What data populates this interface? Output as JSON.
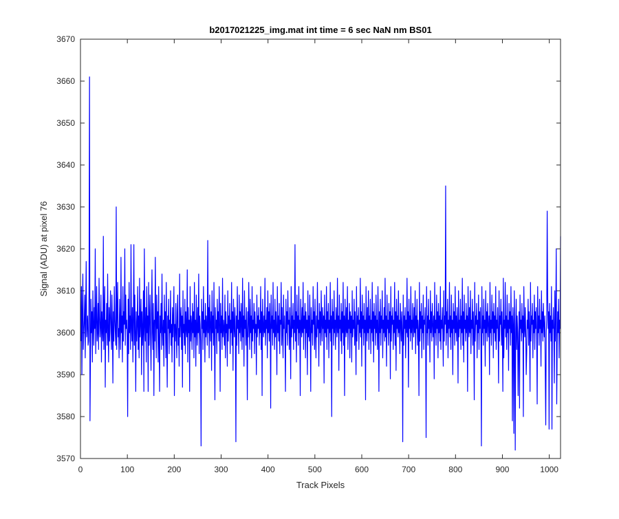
{
  "chart_data": {
    "type": "line",
    "title": "b2017021225_img.mat int time = 6 sec  NaN nm BS01",
    "xlabel": "Track Pixels",
    "ylabel": "Signal (ADU) at pixel 76",
    "xlim": [
      0,
      1024
    ],
    "ylim": [
      3570,
      3670
    ],
    "xticks": [
      0,
      100,
      200,
      300,
      400,
      500,
      600,
      700,
      800,
      900,
      1000
    ],
    "yticks": [
      3570,
      3580,
      3590,
      3600,
      3610,
      3620,
      3630,
      3640,
      3650,
      3660,
      3670
    ],
    "grid": false,
    "legend": "none",
    "series": [
      {
        "color": "#0000ff",
        "x_start": 1,
        "x_step": 1,
        "values_note_free": true,
        "values": [
          3598,
          3611,
          3590,
          3605,
          3614,
          3596,
          3600,
          3603,
          3609,
          3594,
          3606,
          3617,
          3599,
          3602,
          3604,
          3597,
          3598,
          3612,
          3661,
          3579,
          3594,
          3608,
          3600,
          3605,
          3593,
          3610,
          3602,
          3597,
          3606,
          3601,
          3620,
          3595,
          3603,
          3611,
          3598,
          3600,
          3607,
          3596,
          3613,
          3604,
          3599,
          3602,
          3609,
          3593,
          3605,
          3601,
          3598,
          3623,
          3596,
          3604,
          3611,
          3587,
          3603,
          3600,
          3607,
          3597,
          3614,
          3601,
          3593,
          3606,
          3598,
          3604,
          3610,
          3600,
          3596,
          3609,
          3602,
          3588,
          3605,
          3598,
          3611,
          3603,
          3600,
          3597,
          3630,
          3596,
          3605,
          3612,
          3599,
          3601,
          3594,
          3608,
          3602,
          3596,
          3618,
          3600,
          3604,
          3593,
          3611,
          3598,
          3605,
          3602,
          3620,
          3597,
          3609,
          3601,
          3603,
          3599,
          3580,
          3608,
          3595,
          3612,
          3600,
          3604,
          3596,
          3621,
          3601,
          3598,
          3606,
          3593,
          3603,
          3621,
          3597,
          3609,
          3600,
          3586,
          3605,
          3598,
          3602,
          3611,
          3596,
          3604,
          3594,
          3613,
          3599,
          3603,
          3608,
          3590,
          3605,
          3597,
          3601,
          3610,
          3586,
          3620,
          3602,
          3598,
          3606,
          3593,
          3611,
          3600,
          3604,
          3586,
          3612,
          3597,
          3603,
          3609,
          3599,
          3591,
          3605,
          3615,
          3600,
          3596,
          3607,
          3585,
          3603,
          3598,
          3618,
          3602,
          3594,
          3609,
          3601,
          3605,
          3593,
          3611,
          3598,
          3586,
          3604,
          3600,
          3607,
          3596,
          3614,
          3601,
          3597,
          3603,
          3592,
          3609,
          3600,
          3605,
          3594,
          3612,
          3598,
          3587,
          3604,
          3601,
          3608,
          3595,
          3603,
          3600,
          3610,
          3597,
          3602,
          3593,
          3606,
          3599,
          3604,
          3611,
          3585,
          3602,
          3598,
          3607,
          3600,
          3594,
          3605,
          3609,
          3597,
          3601,
          3592,
          3614,
          3599,
          3603,
          3606,
          3596,
          3604,
          3587,
          3610,
          3600,
          3602,
          3597,
          3608,
          3595,
          3605,
          3601,
          3599,
          3615,
          3593,
          3606,
          3600,
          3603,
          3586,
          3611,
          3598,
          3604,
          3602,
          3596,
          3607,
          3600,
          3605,
          3594,
          3612,
          3599,
          3603,
          3592,
          3609,
          3601,
          3597,
          3606,
          3600,
          3614,
          3595,
          3604,
          3602,
          3598,
          3573,
          3608,
          3601,
          3605,
          3596,
          3611,
          3600,
          3603,
          3593,
          3607,
          3599,
          3604,
          3601,
          3597,
          3622,
          3600,
          3606,
          3594,
          3609,
          3602,
          3598,
          3605,
          3591,
          3610,
          3600,
          3604,
          3597,
          3612,
          3599,
          3584,
          3606,
          3601,
          3603,
          3595,
          3608,
          3600,
          3605,
          3598,
          3611,
          3602,
          3586,
          3607,
          3600,
          3604,
          3596,
          3613,
          3599,
          3603,
          3601,
          3597,
          3609,
          3594,
          3605,
          3600,
          3602,
          3592,
          3610,
          3598,
          3604,
          3601,
          3607,
          3595,
          3603,
          3600,
          3612,
          3597,
          3605,
          3591,
          3608,
          3602,
          3599,
          3606,
          3600,
          3574,
          3604,
          3597,
          3611,
          3601,
          3603,
          3595,
          3609,
          3600,
          3605,
          3598,
          3607,
          3602,
          3596,
          3613,
          3599,
          3604,
          3592,
          3610,
          3601,
          3603,
          3597,
          3606,
          3600,
          3584,
          3605,
          3599,
          3612,
          3602,
          3596,
          3608,
          3600,
          3604,
          3594,
          3611,
          3598,
          3603,
          3601,
          3607,
          3595,
          3605,
          3600,
          3602,
          3590,
          3609,
          3599,
          3604,
          3601,
          3606,
          3597,
          3603,
          3600,
          3611,
          3596,
          3605,
          3585,
          3608,
          3602,
          3599,
          3604,
          3600,
          3613,
          3597,
          3603,
          3601,
          3606,
          3594,
          3610,
          3600,
          3605,
          3598,
          3607,
          3602,
          3582,
          3609,
          3601,
          3604,
          3597,
          3612,
          3600,
          3603,
          3596,
          3608,
          3599,
          3605,
          3601,
          3590,
          3611,
          3600,
          3604,
          3598,
          3607,
          3595,
          3603,
          3602,
          3612,
          3597,
          3606,
          3600,
          3594,
          3609,
          3601,
          3604,
          3599,
          3586,
          3608,
          3600,
          3605,
          3597,
          3610,
          3602,
          3603,
          3596,
          3606,
          3600,
          3589,
          3611,
          3599,
          3604,
          3601,
          3607,
          3596,
          3603,
          3600,
          3621,
          3598,
          3605,
          3593,
          3609,
          3601,
          3604,
          3597,
          3611,
          3600,
          3603,
          3585,
          3608,
          3602,
          3599,
          3606,
          3600,
          3612,
          3596,
          3604,
          3601,
          3607,
          3594,
          3605,
          3600,
          3603,
          3590,
          3610,
          3599,
          3604,
          3598,
          3609,
          3601,
          3586,
          3606,
          3600,
          3603,
          3597,
          3611,
          3602,
          3605,
          3596,
          3608,
          3600,
          3594,
          3604,
          3599,
          3612,
          3601,
          3603,
          3592,
          3607,
          3600,
          3605,
          3597,
          3610,
          3602,
          3598,
          3606,
          3601,
          3604,
          3588,
          3609,
          3600,
          3603,
          3599,
          3611,
          3596,
          3605,
          3601,
          3607,
          3594,
          3603,
          3600,
          3612,
          3598,
          3604,
          3580,
          3608,
          3601,
          3605,
          3597,
          3610,
          3600,
          3603,
          3596,
          3606,
          3602,
          3599,
          3613,
          3600,
          3604,
          3591,
          3609,
          3601,
          3603,
          3598,
          3607,
          3595,
          3605,
          3600,
          3612,
          3597,
          3604,
          3585,
          3608,
          3602,
          3599,
          3606,
          3600,
          3611,
          3596,
          3603,
          3601,
          3607,
          3594,
          3605,
          3600,
          3604,
          3593,
          3610,
          3599,
          3603,
          3601,
          3608,
          3597,
          3605,
          3600,
          3590,
          3611,
          3598,
          3604,
          3602,
          3606,
          3596,
          3603,
          3600,
          3613,
          3599,
          3605,
          3592,
          3609,
          3601,
          3604,
          3597,
          3607,
          3600,
          3603,
          3584,
          3611,
          3602,
          3598,
          3606,
          3600,
          3610,
          3596,
          3604,
          3601,
          3608,
          3595,
          3603,
          3600,
          3612,
          3598,
          3605,
          3593,
          3607,
          3601,
          3604,
          3597,
          3609,
          3600,
          3603,
          3596,
          3611,
          3602,
          3586,
          3605,
          3600,
          3608,
          3597,
          3604,
          3601,
          3610,
          3594,
          3603,
          3600,
          3606,
          3598,
          3613,
          3599,
          3604,
          3592,
          3609,
          3601,
          3603,
          3597,
          3607,
          3600,
          3605,
          3589,
          3611,
          3598,
          3604,
          3602,
          3606,
          3596,
          3603,
          3600,
          3612,
          3597,
          3605,
          3591,
          3608,
          3601,
          3604,
          3599,
          3610,
          3600,
          3603,
          3595,
          3607,
          3602,
          3598,
          3605,
          3600,
          3574,
          3609,
          3597,
          3604,
          3601,
          3606,
          3594,
          3603,
          3600,
          3613,
          3599,
          3605,
          3587,
          3608,
          3601,
          3604,
          3598,
          3611,
          3600,
          3603,
          3596,
          3607,
          3602,
          3599,
          3606,
          3600,
          3610,
          3595,
          3604,
          3601,
          3608,
          3597,
          3603,
          3600,
          3585,
          3612,
          3598,
          3605,
          3601,
          3607,
          3594,
          3604,
          3600,
          3609,
          3596,
          3603,
          3602,
          3606,
          3599,
          3575,
          3611,
          3600,
          3604,
          3597,
          3608,
          3601,
          3603,
          3593,
          3610,
          3600,
          3605,
          3598,
          3607,
          3602,
          3599,
          3604,
          3589,
          3612,
          3600,
          3603,
          3597,
          3609,
          3601,
          3605,
          3594,
          3607,
          3600,
          3604,
          3598,
          3611,
          3596,
          3603,
          3601,
          3606,
          3600,
          3592,
          3610,
          3598,
          3604,
          3602,
          3635,
          3597,
          3605,
          3600,
          3608,
          3594,
          3603,
          3601,
          3612,
          3599,
          3604,
          3596,
          3609,
          3600,
          3603,
          3590,
          3607,
          3601,
          3605,
          3597,
          3611,
          3600,
          3604,
          3598,
          3606,
          3602,
          3588,
          3610,
          3599,
          3603,
          3601,
          3608,
          3596,
          3604,
          3600,
          3613,
          3597,
          3605,
          3593,
          3609,
          3601,
          3603,
          3598,
          3607,
          3600,
          3604,
          3586,
          3611,
          3602,
          3599,
          3606,
          3600,
          3610,
          3595,
          3603,
          3601,
          3608,
          3597,
          3605,
          3600,
          3584,
          3612,
          3598,
          3604,
          3602,
          3607,
          3594,
          3603,
          3600,
          3609,
          3596,
          3605,
          3601,
          3606,
          3599,
          3573,
          3611,
          3600,
          3604,
          3597,
          3608,
          3601,
          3603,
          3592,
          3610,
          3600,
          3605,
          3598,
          3607,
          3602,
          3599,
          3604,
          3590,
          3612,
          3600,
          3603,
          3597,
          3609,
          3601,
          3605,
          3594,
          3607,
          3600,
          3604,
          3598,
          3611,
          3596,
          3603,
          3601,
          3606,
          3600,
          3588,
          3610,
          3598,
          3604,
          3602,
          3608,
          3597,
          3605,
          3600,
          3586,
          3613,
          3594,
          3603,
          3601,
          3612,
          3599,
          3604,
          3596,
          3609,
          3600,
          3603,
          3591,
          3607,
          3601,
          3605,
          3597,
          3611,
          3600,
          3604,
          3579,
          3606,
          3602,
          3576,
          3610,
          3599,
          3572,
          3601,
          3608,
          3596,
          3604,
          3600,
          3585,
          3597,
          3605,
          3582,
          3609,
          3601,
          3603,
          3598,
          3607,
          3600,
          3604,
          3580,
          3611,
          3602,
          3599,
          3606,
          3600,
          3590,
          3595,
          3603,
          3601,
          3608,
          3597,
          3605,
          3600,
          3586,
          3612,
          3598,
          3604,
          3602,
          3607,
          3594,
          3603,
          3600,
          3609,
          3596,
          3605,
          3601,
          3606,
          3599,
          3583,
          3611,
          3600,
          3604,
          3597,
          3608,
          3601,
          3603,
          3592,
          3610,
          3600,
          3605,
          3598,
          3607,
          3602,
          3599,
          3604,
          3590,
          3578,
          3600,
          3603,
          3629,
          3609,
          3601,
          3605,
          3577,
          3607,
          3600,
          3604,
          3598,
          3611,
          3577,
          3603,
          3601,
          3606,
          3600,
          3588,
          3610,
          3598,
          3604,
          3620,
          3583,
          3597,
          3605,
          3600,
          3608,
          3594,
          3603,
          3601,
          3623
        ]
      }
    ]
  }
}
